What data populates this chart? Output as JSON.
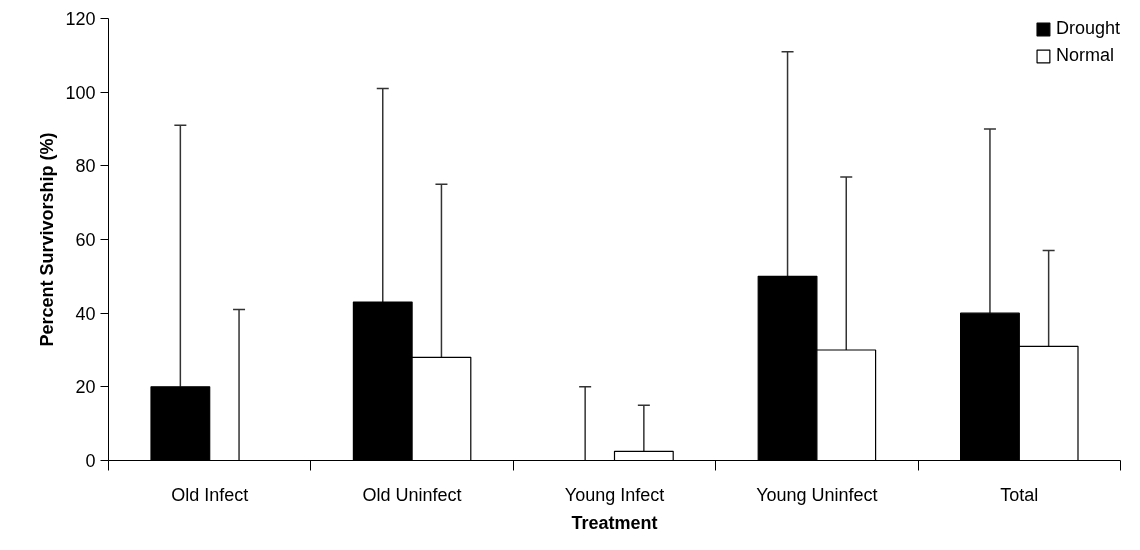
{
  "chart_data": {
    "type": "bar",
    "xlabel": "Treatment",
    "ylabel": "Percent Survivorship (%)",
    "categories": [
      "Old Infect",
      "Old Uninfect",
      "Young Infect",
      "Young Uninfect",
      "Total"
    ],
    "series": [
      {
        "name": "Drought",
        "color": "#000000",
        "values": [
          20,
          43,
          0,
          50,
          40
        ],
        "errors": [
          [
            20,
            91
          ],
          [
            43,
            101
          ],
          [
            0,
            20
          ],
          [
            50,
            111
          ],
          [
            40,
            90
          ]
        ]
      },
      {
        "name": "Normal",
        "color": "#ffffff",
        "values": [
          0,
          28,
          2.5,
          30,
          31
        ],
        "errors": [
          [
            0,
            41
          ],
          [
            28,
            75
          ],
          [
            2.5,
            15
          ],
          [
            30,
            77
          ],
          [
            31,
            57
          ]
        ]
      }
    ],
    "ylim": [
      0,
      120
    ],
    "yticks": [
      0,
      20,
      40,
      60,
      80,
      100,
      120
    ],
    "grid": false,
    "legend": "top right"
  }
}
